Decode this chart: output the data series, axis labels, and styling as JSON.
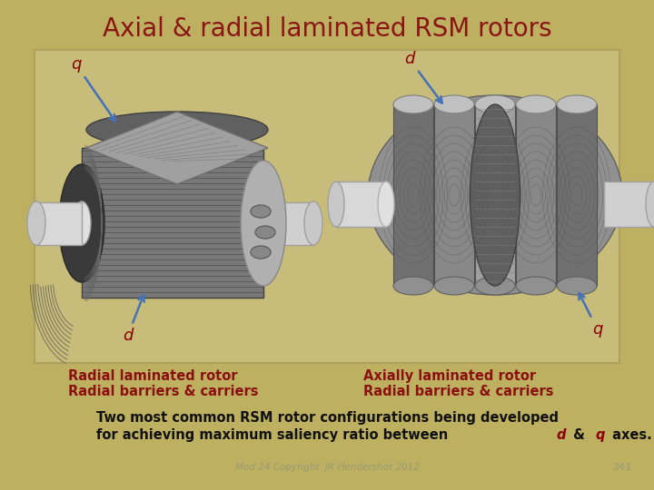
{
  "title": "Axial & radial laminated RSM rotors",
  "title_color": "#8B1515",
  "title_fontsize": 20,
  "bg_color_top": "#C8BA72",
  "bg_color_bottom": "#B8A850",
  "bg_color": "#BDB060",
  "panel_bg": "#C8BC78",
  "panel_border": "#A89848",
  "label_color": "#8B0000",
  "arrow_color": "#4472B8",
  "caption_color": "#8B1010",
  "bottom_text_color": "#111111",
  "italic_color": "#8B0000",
  "copyright_color": "#999977",
  "left_caption_line1": "Radial laminated rotor",
  "left_caption_line2": "Radial barriers & carriers",
  "right_caption_line1": "Axially laminated rotor",
  "right_caption_line2": "Radial barriers & carriers",
  "bottom_line1": "Two most common RSM rotor configurations being developed",
  "bottom_line2_pre": "for achieving maximum saliency ratio between ",
  "bottom_line2_d": "d",
  "bottom_line2_amp": " & ",
  "bottom_line2_q": "q",
  "bottom_line2_post": " axes.",
  "copyright_text": "Mod 24 Copyright  JR Hendershot 2012",
  "page_number": "241"
}
